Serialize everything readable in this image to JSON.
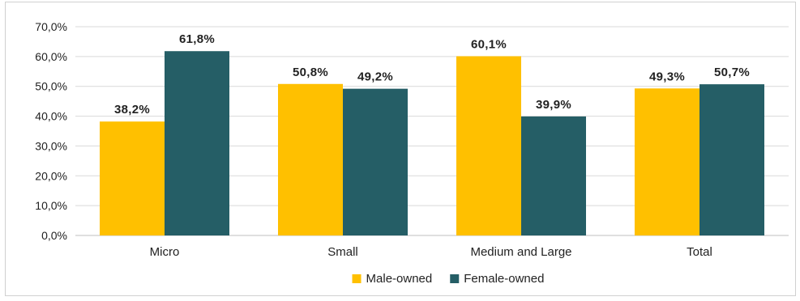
{
  "chart_data": {
    "type": "bar",
    "categories": [
      "Micro",
      "Small",
      "Medium and Large",
      "Total"
    ],
    "series": [
      {
        "name": "Male-owned",
        "color": "#FFC000",
        "values": [
          38.2,
          50.8,
          60.1,
          49.3
        ],
        "labels": [
          "38,2%",
          "50,8%",
          "60,1%",
          "49,3%"
        ]
      },
      {
        "name": "Female-owned",
        "color": "#255E66",
        "values": [
          61.8,
          49.2,
          39.9,
          50.7
        ],
        "labels": [
          "61,8%",
          "49,2%",
          "39,9%",
          "50,7%"
        ]
      }
    ],
    "title": "",
    "xlabel": "",
    "ylabel": "",
    "ylim": [
      0,
      70
    ],
    "yticks": [
      0,
      10,
      20,
      30,
      40,
      50,
      60,
      70
    ],
    "ytick_labels": [
      "0,0%",
      "10,0%",
      "20,0%",
      "30,0%",
      "40,0%",
      "50,0%",
      "60,0%",
      "70,0%"
    ],
    "grid": true,
    "grid_color": "#D9D9D9",
    "legend_position": "bottom"
  }
}
